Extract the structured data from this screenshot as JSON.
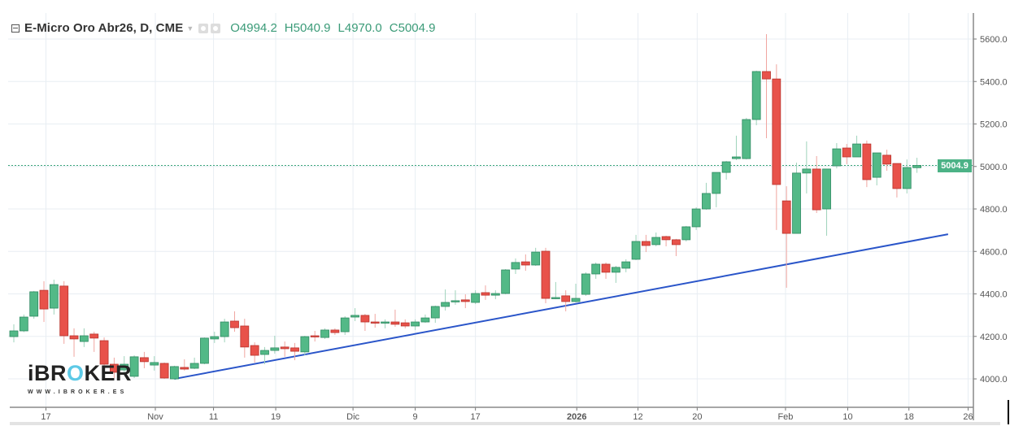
{
  "header": {
    "title": "E-Micro Oro Abr26, D, CME",
    "open_label": "O",
    "open": "4994.2",
    "high_label": "H",
    "high": "5040.9",
    "low_label": "L",
    "low": "4970.0",
    "close_label": "C",
    "close": "5004.9",
    "icons": [
      "collapse-icon",
      "dropdown-caret-icon",
      "eye-icon",
      "gear-icon"
    ]
  },
  "logo": {
    "text": "iBROKER",
    "url": "WWW.IBROKER.ES"
  },
  "last_price_label": "5004.9",
  "colors": {
    "up": "#53b987",
    "down": "#e8524a",
    "trendline": "#2a55c9",
    "price_line": "#3aa57b",
    "grid": "#e8eef3"
  },
  "chart_data": {
    "type": "candlestick",
    "title": "E-Micro Oro Abr26, D, CME",
    "ylim": [
      3900,
      5720
    ],
    "grid": true,
    "y_ticks": [
      4000,
      4200,
      4400,
      4600,
      4800,
      5000,
      5200,
      5400,
      5600
    ],
    "y_tick_labels": [
      "4000.0",
      "4200.0",
      "4400.0",
      "4600.0",
      "4800.0",
      "5000.0",
      "5200.0",
      "5400.0",
      "5600.0"
    ],
    "x_ticks": [
      {
        "label": "17",
        "at": 3.2
      },
      {
        "label": "Nov",
        "at": 14.1
      },
      {
        "label": "11",
        "at": 19.9
      },
      {
        "label": "19",
        "at": 26.1
      },
      {
        "label": "Dic",
        "at": 33.8
      },
      {
        "label": "9",
        "at": 40.0
      },
      {
        "label": "17",
        "at": 46.0
      },
      {
        "label": "2026",
        "at": 56.1
      },
      {
        "label": "12",
        "at": 62.2
      },
      {
        "label": "20",
        "at": 68.1
      },
      {
        "label": "Feb",
        "at": 76.9
      },
      {
        "label": "10",
        "at": 83.1
      },
      {
        "label": "18",
        "at": 89.2
      },
      {
        "label": "26",
        "at": 95.1
      }
    ],
    "ohlc_fields": [
      "open",
      "high",
      "low",
      "close"
    ],
    "candles": [
      [
        4199,
        4257,
        4172,
        4226
      ],
      [
        4226,
        4303,
        4220,
        4291
      ],
      [
        4295,
        4414,
        4283,
        4410
      ],
      [
        4417,
        4460,
        4268,
        4329
      ],
      [
        4333,
        4467,
        4303,
        4444
      ],
      [
        4437,
        4460,
        4165,
        4203
      ],
      [
        4203,
        4238,
        4104,
        4188
      ],
      [
        4176,
        4238,
        4150,
        4203
      ],
      [
        4211,
        4222,
        4127,
        4192
      ],
      [
        4180,
        4195,
        4042,
        4069
      ],
      [
        4069,
        4100,
        4004,
        4031
      ],
      [
        4042,
        4107,
        4023,
        4069
      ],
      [
        4012,
        4111,
        4004,
        4104
      ],
      [
        4100,
        4127,
        4050,
        4081
      ],
      [
        4065,
        4107,
        4039,
        4077
      ],
      [
        4073,
        4077,
        4000,
        4004
      ],
      [
        4000,
        4062,
        3996,
        4058
      ],
      [
        4054,
        4092,
        4039,
        4046
      ],
      [
        4050,
        4100,
        4046,
        4073
      ],
      [
        4073,
        4195,
        4069,
        4192
      ],
      [
        4188,
        4222,
        4169,
        4199
      ],
      [
        4199,
        4283,
        4172,
        4268
      ],
      [
        4272,
        4318,
        4222,
        4241
      ],
      [
        4249,
        4283,
        4100,
        4150
      ],
      [
        4157,
        4172,
        4077,
        4111
      ],
      [
        4115,
        4150,
        4069,
        4134
      ],
      [
        4134,
        4203,
        4119,
        4146
      ],
      [
        4150,
        4176,
        4104,
        4142
      ],
      [
        4146,
        4169,
        4088,
        4130
      ],
      [
        4127,
        4203,
        4111,
        4199
      ],
      [
        4203,
        4226,
        4176,
        4199
      ],
      [
        4195,
        4238,
        4188,
        4230
      ],
      [
        4230,
        4238,
        4207,
        4218
      ],
      [
        4222,
        4295,
        4207,
        4287
      ],
      [
        4291,
        4333,
        4272,
        4299
      ],
      [
        4299,
        4306,
        4226,
        4268
      ],
      [
        4268,
        4306,
        4241,
        4264
      ],
      [
        4264,
        4280,
        4238,
        4268
      ],
      [
        4268,
        4326,
        4245,
        4257
      ],
      [
        4264,
        4280,
        4238,
        4249
      ],
      [
        4249,
        4280,
        4230,
        4268
      ],
      [
        4268,
        4303,
        4264,
        4287
      ],
      [
        4287,
        4345,
        4264,
        4341
      ],
      [
        4341,
        4421,
        4322,
        4360
      ],
      [
        4364,
        4417,
        4349,
        4368
      ],
      [
        4372,
        4398,
        4333,
        4364
      ],
      [
        4360,
        4417,
        4352,
        4402
      ],
      [
        4406,
        4440,
        4372,
        4394
      ],
      [
        4394,
        4417,
        4375,
        4402
      ],
      [
        4402,
        4517,
        4398,
        4513
      ],
      [
        4517,
        4567,
        4494,
        4548
      ],
      [
        4551,
        4586,
        4509,
        4536
      ],
      [
        4536,
        4617,
        4532,
        4597
      ],
      [
        4601,
        4617,
        4356,
        4379
      ],
      [
        4379,
        4456,
        4375,
        4383
      ],
      [
        4391,
        4417,
        4318,
        4364
      ],
      [
        4364,
        4448,
        4360,
        4379
      ],
      [
        4398,
        4502,
        4391,
        4494
      ],
      [
        4494,
        4548,
        4471,
        4540
      ],
      [
        4540,
        4548,
        4471,
        4502
      ],
      [
        4502,
        4532,
        4452,
        4525
      ],
      [
        4521,
        4563,
        4502,
        4551
      ],
      [
        4563,
        4678,
        4559,
        4647
      ],
      [
        4647,
        4678,
        4597,
        4628
      ],
      [
        4632,
        4689,
        4624,
        4666
      ],
      [
        4670,
        4674,
        4624,
        4655
      ],
      [
        4655,
        4659,
        4578,
        4632
      ],
      [
        4655,
        4720,
        4647,
        4716
      ],
      [
        4716,
        4808,
        4701,
        4800
      ],
      [
        4800,
        4923,
        4796,
        4873
      ],
      [
        4873,
        4972,
        4808,
        4972
      ],
      [
        4972,
        5026,
        4938,
        5022
      ],
      [
        5037,
        5145,
        5030,
        5045
      ],
      [
        5037,
        5229,
        5033,
        5221
      ],
      [
        5221,
        5451,
        5194,
        5447
      ],
      [
        5447,
        5623,
        5133,
        5412
      ],
      [
        5412,
        5481,
        4701,
        4915
      ],
      [
        4838,
        4907,
        4429,
        4685
      ],
      [
        4685,
        5018,
        4685,
        4969
      ],
      [
        4969,
        5118,
        4873,
        4988
      ],
      [
        4988,
        5049,
        4781,
        4796
      ],
      [
        4800,
        4988,
        4674,
        4988
      ],
      [
        5003,
        5110,
        4991,
        5083
      ],
      [
        5087,
        5106,
        5011,
        5045
      ],
      [
        5045,
        5145,
        5045,
        5106
      ],
      [
        5106,
        5122,
        4903,
        4938
      ],
      [
        4949,
        5064,
        4911,
        5064
      ],
      [
        5053,
        5079,
        4980,
        5011
      ],
      [
        5014,
        5014,
        4854,
        4896
      ],
      [
        4896,
        5033,
        4873,
        4995
      ],
      [
        4994.2,
        5040.9,
        4970.0,
        5004.9
      ]
    ],
    "last_price": 5004.9,
    "trendline": {
      "from": {
        "at": 16,
        "price": 4000
      },
      "to": {
        "at": 93.1,
        "price": 4681
      }
    }
  }
}
